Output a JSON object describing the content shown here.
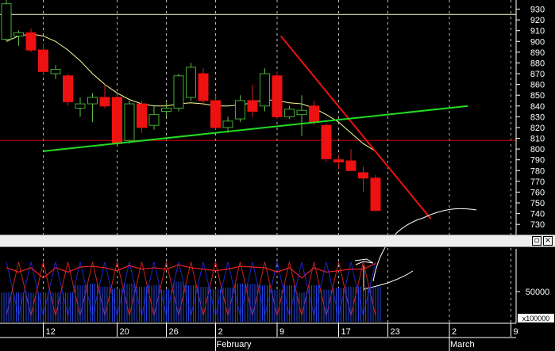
{
  "chart_data": [
    {
      "type": "candlestick",
      "price_axis": {
        "ticks": [
          "930",
          "920",
          "910",
          "900",
          "890",
          "880",
          "870",
          "860",
          "850",
          "840",
          "830",
          "820",
          "810",
          "800",
          "790",
          "780",
          "770",
          "760",
          "750",
          "740",
          "730"
        ],
        "ylim": [
          725,
          937
        ],
        "horizontal_lines": [
          {
            "value": 925,
            "color": "#ffffcc"
          },
          {
            "value": 808,
            "color": "#cc0000"
          }
        ]
      },
      "x_axis": {
        "day_labels": [
          {
            "index": 3,
            "label": "12"
          },
          {
            "index": 9,
            "label": "20"
          },
          {
            "index": 13,
            "label": "26"
          },
          {
            "index": 17,
            "label": "2"
          },
          {
            "index": 22,
            "label": "9"
          },
          {
            "index": 27,
            "label": "17"
          },
          {
            "index": 31,
            "label": "23"
          },
          {
            "index": 36,
            "label": "2"
          },
          {
            "index": 41,
            "label": "9"
          }
        ],
        "month_labels": [
          {
            "index": 17,
            "label": "February"
          },
          {
            "index": 36,
            "label": "March"
          }
        ]
      },
      "candles": [
        {
          "o": 902,
          "h": 940,
          "l": 900,
          "c": 935
        },
        {
          "o": 905,
          "h": 910,
          "l": 896,
          "c": 908
        },
        {
          "o": 908,
          "h": 912,
          "l": 890,
          "c": 892
        },
        {
          "o": 892,
          "h": 898,
          "l": 870,
          "c": 872
        },
        {
          "o": 870,
          "h": 878,
          "l": 865,
          "c": 874
        },
        {
          "o": 868,
          "h": 870,
          "l": 840,
          "c": 844
        },
        {
          "o": 838,
          "h": 848,
          "l": 830,
          "c": 842
        },
        {
          "o": 842,
          "h": 852,
          "l": 825,
          "c": 848
        },
        {
          "o": 848,
          "h": 860,
          "l": 838,
          "c": 840
        },
        {
          "o": 848,
          "h": 850,
          "l": 805,
          "c": 805
        },
        {
          "o": 808,
          "h": 845,
          "l": 805,
          "c": 842
        },
        {
          "o": 842,
          "h": 845,
          "l": 815,
          "c": 820
        },
        {
          "o": 822,
          "h": 840,
          "l": 818,
          "c": 832
        },
        {
          "o": 835,
          "h": 843,
          "l": 830,
          "c": 838
        },
        {
          "o": 838,
          "h": 870,
          "l": 835,
          "c": 868
        },
        {
          "o": 848,
          "h": 880,
          "l": 845,
          "c": 876
        },
        {
          "o": 870,
          "h": 875,
          "l": 840,
          "c": 845
        },
        {
          "o": 845,
          "h": 850,
          "l": 818,
          "c": 820
        },
        {
          "o": 820,
          "h": 830,
          "l": 815,
          "c": 826
        },
        {
          "o": 828,
          "h": 850,
          "l": 825,
          "c": 845
        },
        {
          "o": 845,
          "h": 860,
          "l": 830,
          "c": 835
        },
        {
          "o": 840,
          "h": 875,
          "l": 835,
          "c": 870
        },
        {
          "o": 868,
          "h": 872,
          "l": 828,
          "c": 830
        },
        {
          "o": 830,
          "h": 840,
          "l": 828,
          "c": 837
        },
        {
          "o": 832,
          "h": 850,
          "l": 812,
          "c": 836
        },
        {
          "o": 840,
          "h": 845,
          "l": 822,
          "c": 825
        },
        {
          "o": 822,
          "h": 824,
          "l": 788,
          "c": 791
        },
        {
          "o": 790,
          "h": 794,
          "l": 782,
          "c": 788
        },
        {
          "o": 789,
          "h": 800,
          "l": 780,
          "c": 780
        },
        {
          "o": 778,
          "h": 784,
          "l": 760,
          "c": 773
        },
        {
          "o": 773,
          "h": 776,
          "l": 742,
          "c": 743
        }
      ],
      "moving_average": {
        "color": "#ffff99",
        "points": [
          [
            0,
            900
          ],
          [
            1,
            905
          ],
          [
            2,
            907
          ],
          [
            3,
            905
          ],
          [
            4,
            900
          ],
          [
            5,
            892
          ],
          [
            6,
            882
          ],
          [
            7,
            870
          ],
          [
            8,
            860
          ],
          [
            9,
            852
          ],
          [
            10,
            846
          ],
          [
            11,
            842
          ],
          [
            12,
            840
          ],
          [
            13,
            840
          ],
          [
            14,
            842
          ],
          [
            15,
            843
          ],
          [
            16,
            842
          ],
          [
            17,
            840
          ],
          [
            18,
            840
          ],
          [
            19,
            841
          ],
          [
            20,
            843
          ],
          [
            21,
            846
          ],
          [
            22,
            845
          ],
          [
            23,
            843
          ],
          [
            24,
            842
          ],
          [
            25,
            838
          ],
          [
            26,
            832
          ],
          [
            27,
            825
          ],
          [
            28,
            815
          ],
          [
            29,
            805
          ],
          [
            30,
            798
          ]
        ]
      },
      "trend_lines": [
        {
          "color": "#ee1111",
          "from": [
            22.3,
            905
          ],
          "to": [
            34.5,
            735
          ]
        },
        {
          "color": "#22dd22",
          "from": [
            3.0,
            798
          ],
          "to": [
            37.5,
            840
          ]
        }
      ]
    },
    {
      "type": "volume",
      "y_tick": "50000",
      "multiplier_label": "x100000",
      "red_line": [
        74,
        68,
        74,
        60,
        74,
        68,
        75,
        76,
        74,
        70,
        77,
        72,
        74,
        72,
        78,
        74,
        72,
        70,
        72,
        76,
        75,
        74,
        68,
        74,
        60,
        74,
        68,
        70,
        72,
        72,
        80
      ],
      "blue_bars": [
        40,
        40,
        40,
        40,
        40,
        40,
        50,
        52,
        48,
        45,
        52,
        48,
        50,
        44,
        55,
        50,
        48,
        45,
        47,
        52,
        52,
        50,
        44,
        50,
        40,
        50,
        44,
        46,
        48,
        48,
        48
      ],
      "zigzag_low": 8,
      "zigzag_high": 82
    }
  ]
}
